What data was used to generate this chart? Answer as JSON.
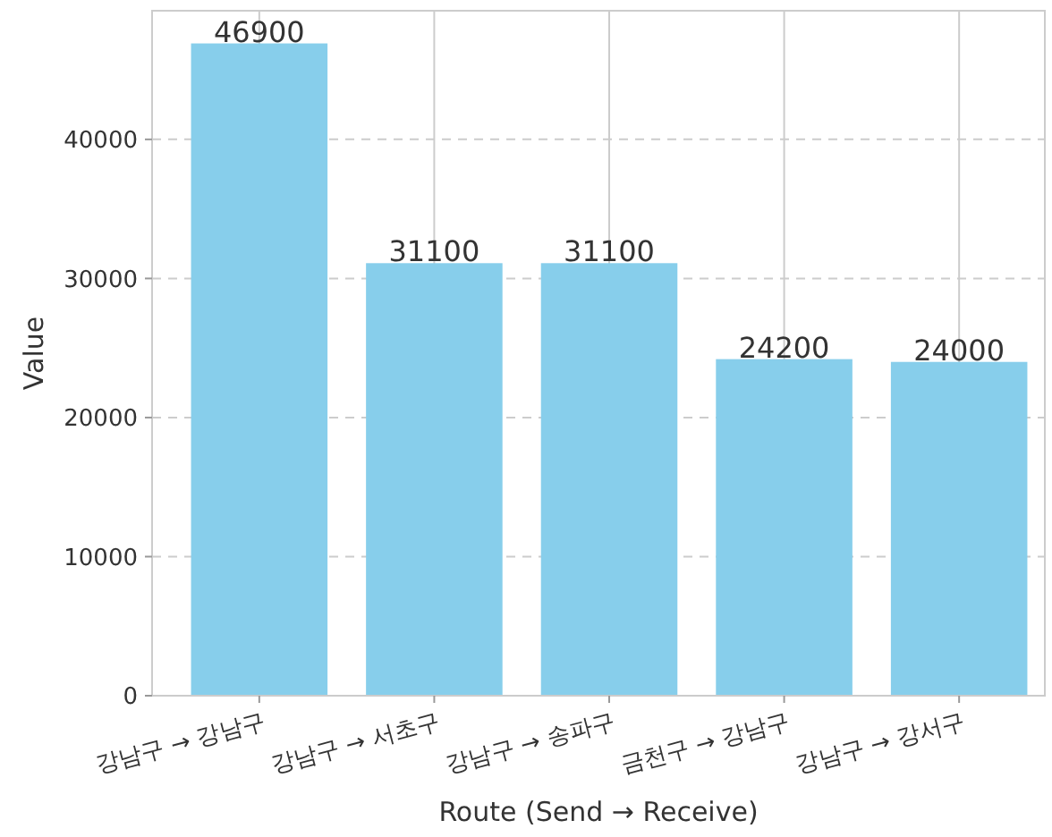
{
  "chart_data": {
    "type": "bar",
    "xlabel": "Route (Send → Receive)",
    "ylabel": "Value",
    "categories": [
      "강남구 → 강남구",
      "강남구 → 서초구",
      "강남구 → 송파구",
      "금천구 → 강남구",
      "강남구 → 강서구"
    ],
    "values": [
      46900,
      31100,
      31100,
      24200,
      24000
    ],
    "color": "#87ceeb",
    "ylim": [
      0,
      49250
    ],
    "yticks": [
      0,
      10000,
      20000,
      30000,
      40000
    ],
    "grid": true,
    "data_labels": true
  }
}
